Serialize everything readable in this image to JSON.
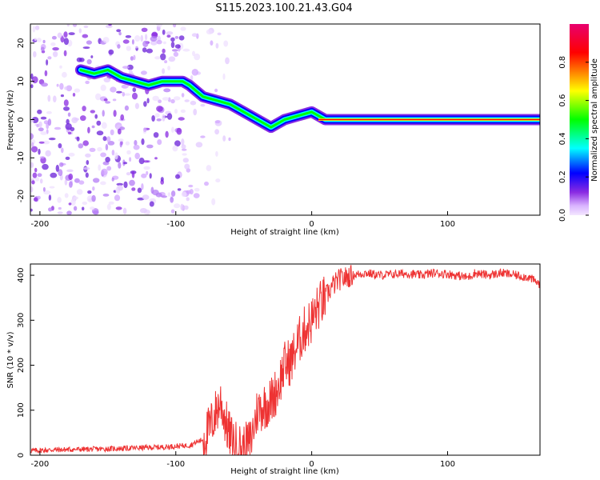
{
  "title": "S115.2023.100.21.43.G04",
  "chart_data": [
    {
      "type": "heatmap",
      "xlabel": "Height of straight line (km)",
      "ylabel": "Frequency (Hz)",
      "xlim": [
        -207,
        168
      ],
      "ylim": [
        -25,
        25
      ],
      "xticks": [
        -200,
        -100,
        0,
        100
      ],
      "yticks": [
        -20,
        -10,
        0,
        10,
        20
      ],
      "colorbar": {
        "label": "Normalized spectral amplitude",
        "range": [
          0,
          1
        ],
        "ticks": [
          0.0,
          0.2,
          0.4,
          0.6,
          0.8
        ],
        "colormap": [
          "#f3e6ff",
          "#d9b3ff",
          "#8a2be2",
          "#0000ff",
          "#00ffff",
          "#00ff00",
          "#ffff00",
          "#ff0000",
          "#e8006e"
        ]
      },
      "ridge": {
        "x": [
          -170,
          -160,
          -150,
          -140,
          -130,
          -120,
          -110,
          -100,
          -95,
          -90,
          -80,
          -70,
          -60,
          -50,
          -40,
          -30,
          -25,
          -20,
          -10,
          0,
          10,
          20,
          40,
          60,
          80,
          100,
          120,
          140,
          168
        ],
        "y": [
          13,
          12,
          13,
          11,
          10,
          9,
          10,
          10,
          10,
          9,
          6,
          5,
          4,
          2,
          0,
          -2,
          -1,
          0,
          1,
          2,
          0,
          0,
          0,
          0,
          0,
          0,
          0,
          0,
          0
        ]
      }
    },
    {
      "type": "line",
      "xlabel": "Height of straight line (km)",
      "ylabel": "SNR (10 * v/v)",
      "xlim": [
        -207,
        168
      ],
      "ylim": [
        0,
        425
      ],
      "xticks": [
        -200,
        -100,
        0,
        100
      ],
      "yticks": [
        0,
        100,
        200,
        300,
        400
      ],
      "color": "#ee3333",
      "series": [
        {
          "x": [
            -207,
            -190,
            -170,
            -150,
            -130,
            -110,
            -90,
            -80,
            -75,
            -70,
            -67,
            -63,
            -60,
            -55,
            -50,
            -45,
            -40,
            -35,
            -30,
            -25,
            -20,
            -15,
            -10,
            -5,
            0,
            5,
            10,
            15,
            20,
            30,
            40,
            50,
            60,
            70,
            80,
            90,
            100,
            110,
            115,
            120,
            130,
            140,
            150,
            160,
            168
          ],
          "y": [
            10,
            12,
            13,
            14,
            16,
            18,
            22,
            35,
            60,
            100,
            120,
            70,
            40,
            20,
            15,
            30,
            100,
            110,
            120,
            150,
            200,
            210,
            250,
            280,
            300,
            330,
            350,
            375,
            390,
            400,
            405,
            400,
            402,
            404,
            400,
            405,
            403,
            398,
            395,
            405,
            400,
            405,
            400,
            395,
            380
          ]
        }
      ]
    }
  ]
}
